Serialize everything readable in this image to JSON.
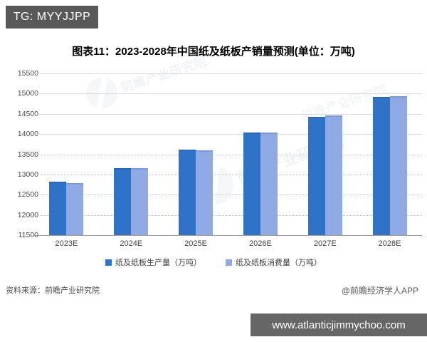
{
  "overlay": {
    "tg_label": "TG: MYYJJPP",
    "url_text": "www.atlanticjimmychoo.com"
  },
  "title": "图表11：2023-2028年中国纸及纸板产销量预测(单位：万吨)",
  "chart_data": {
    "type": "bar",
    "title": "图表11：2023-2028年中国纸及纸板产销量预测(单位：万吨)",
    "categories": [
      "2023E",
      "2024E",
      "2025E",
      "2026E",
      "2027E",
      "2028E"
    ],
    "series": [
      {
        "name": "纸及纸板生产量（万吨）",
        "color": "#2F73C9",
        "values": [
          12820,
          13160,
          13610,
          14030,
          14420,
          14910
        ]
      },
      {
        "name": "纸及纸板消费量（万吨）",
        "color": "#8EA9E4",
        "values": [
          12780,
          13150,
          13590,
          14040,
          14460,
          14940
        ]
      }
    ],
    "ylim": [
      11500,
      15500
    ],
    "yticks": [
      11500,
      12000,
      12500,
      13000,
      13500,
      14000,
      14500,
      15000,
      15500
    ],
    "dotted_gridlines_below": 14000,
    "xlabel": "",
    "ylabel": "",
    "grid": true,
    "legend_position": "bottom"
  },
  "footer": {
    "source": "资料来源：前瞻产业研究院",
    "attribution": "@前瞻经济学人APP"
  },
  "watermark": {
    "text": "前瞻产业研究院"
  }
}
